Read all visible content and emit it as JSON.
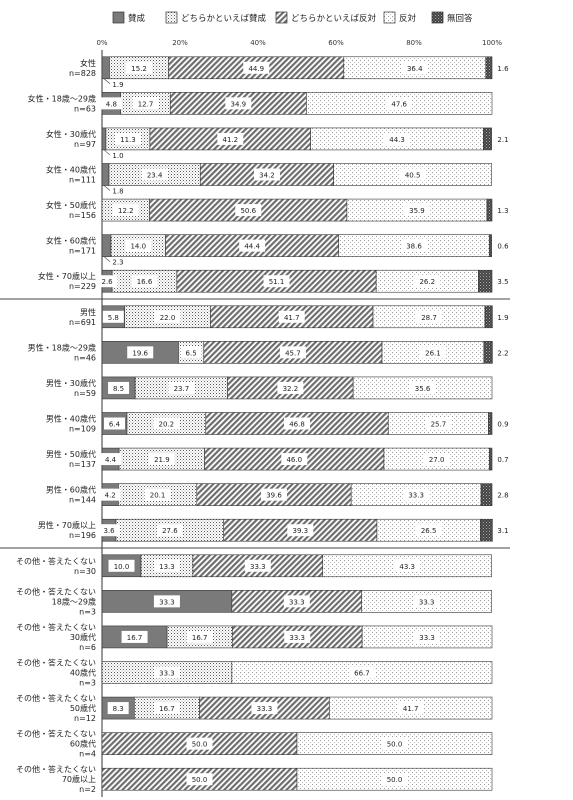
{
  "chart_data": {
    "type": "bar",
    "orientation": "horizontal",
    "stacked": true,
    "legend_position": "top",
    "xlim": [
      0,
      100
    ],
    "x_ticks": [
      "0%",
      "20%",
      "40%",
      "60%",
      "80%",
      "100%"
    ],
    "series": [
      {
        "name": "賛成",
        "pattern": "solid-gray",
        "color": "#7a7a7a"
      },
      {
        "name": "どちらかといえば賛成",
        "pattern": "dense-dots",
        "color": "#ffffff"
      },
      {
        "name": "どちらかといえば反対",
        "pattern": "diagonal-hatch",
        "color": "#ffffff"
      },
      {
        "name": "反対",
        "pattern": "sparse-dots",
        "color": "#ffffff"
      },
      {
        "name": "無回答",
        "pattern": "dark-crosshatch",
        "color": "#555555"
      }
    ],
    "rows": [
      {
        "label": [
          "女性",
          "n=828"
        ],
        "values": [
          1.9,
          15.2,
          44.9,
          36.4,
          1.6
        ]
      },
      {
        "label": [
          "女性・18歳～29歳",
          "n=63"
        ],
        "values": [
          4.8,
          12.7,
          34.9,
          47.6,
          0
        ]
      },
      {
        "label": [
          "女性・30歳代",
          "n=97"
        ],
        "values": [
          1.0,
          11.3,
          41.2,
          44.3,
          2.1
        ]
      },
      {
        "label": [
          "女性・40歳代",
          "n=111"
        ],
        "values": [
          1.8,
          23.4,
          34.2,
          40.5,
          0
        ]
      },
      {
        "label": [
          "女性・50歳代",
          "n=156"
        ],
        "values": [
          0,
          12.2,
          50.6,
          35.9,
          1.3
        ]
      },
      {
        "label": [
          "女性・60歳代",
          "n=171"
        ],
        "values": [
          2.3,
          14.0,
          44.4,
          38.6,
          0.6
        ]
      },
      {
        "label": [
          "女性・70歳以上",
          "n=229"
        ],
        "values": [
          2.6,
          16.6,
          51.1,
          26.2,
          3.5
        ]
      },
      {
        "label": [
          "男性",
          "n=691"
        ],
        "values": [
          5.8,
          22.0,
          41.7,
          28.7,
          1.9
        ]
      },
      {
        "label": [
          "男性・18歳～29歳",
          "n=46"
        ],
        "values": [
          19.6,
          6.5,
          45.7,
          26.1,
          2.2
        ]
      },
      {
        "label": [
          "男性・30歳代",
          "n=59"
        ],
        "values": [
          8.5,
          23.7,
          32.2,
          35.6,
          0
        ]
      },
      {
        "label": [
          "男性・40歳代",
          "n=109"
        ],
        "values": [
          6.4,
          20.2,
          46.8,
          25.7,
          0.9
        ]
      },
      {
        "label": [
          "男性・50歳代",
          "n=137"
        ],
        "values": [
          4.4,
          21.9,
          46.0,
          27.0,
          0.7
        ]
      },
      {
        "label": [
          "男性・60歳代",
          "n=144"
        ],
        "values": [
          4.2,
          20.1,
          39.6,
          33.3,
          2.8
        ]
      },
      {
        "label": [
          "男性・70歳以上",
          "n=196"
        ],
        "values": [
          3.6,
          27.6,
          39.3,
          26.5,
          3.1
        ]
      },
      {
        "label": [
          "その他・答えたくない",
          "n=30"
        ],
        "values": [
          10.0,
          13.3,
          33.3,
          43.3,
          0
        ]
      },
      {
        "label": [
          "その他・答えたくない",
          "18歳～29歳",
          "n=3"
        ],
        "values": [
          33.3,
          0,
          33.3,
          33.3,
          0
        ]
      },
      {
        "label": [
          "その他・答えたくない",
          "30歳代",
          "n=6"
        ],
        "values": [
          16.7,
          16.7,
          33.3,
          33.3,
          0
        ]
      },
      {
        "label": [
          "その他・答えたくない",
          "40歳代",
          "n=3"
        ],
        "values": [
          0,
          33.3,
          0,
          66.7,
          0
        ]
      },
      {
        "label": [
          "その他・答えたくない",
          "50歳代",
          "n=12"
        ],
        "values": [
          8.3,
          16.7,
          33.3,
          41.7,
          0
        ]
      },
      {
        "label": [
          "その他・答えたくない",
          "60歳代",
          "n=4"
        ],
        "values": [
          0,
          0,
          50.0,
          50.0,
          0
        ]
      },
      {
        "label": [
          "その他・答えたくない",
          "70歳以上",
          "n=2"
        ],
        "values": [
          0,
          0,
          50.0,
          50.0,
          0
        ]
      }
    ]
  }
}
